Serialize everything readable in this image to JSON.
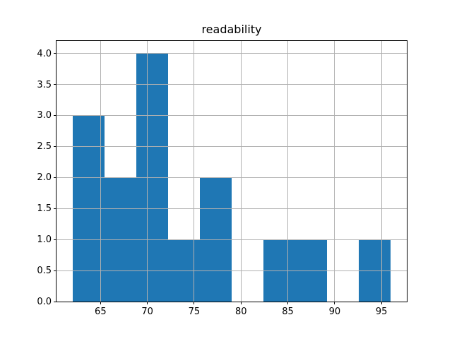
{
  "chart_data": {
    "type": "bar",
    "subtype": "histogram",
    "title": "readability",
    "xlabel": "",
    "ylabel": "",
    "bar_color": "#1f77b4",
    "grid": true,
    "grid_color": "#b0b0b0",
    "grid_above_bars": true,
    "background_color": "#ffffff",
    "frame_color": "#000000",
    "bin_edges": [
      62.0,
      65.4,
      68.8,
      72.2,
      75.6,
      79.0,
      82.4,
      85.8,
      89.2,
      92.6,
      96.0
    ],
    "counts": [
      3,
      2,
      4,
      1,
      2,
      0,
      1,
      1,
      0,
      1
    ],
    "xlim": [
      60.3,
      97.7
    ],
    "ylim": [
      0,
      4.2
    ],
    "x_axis": {
      "ticks": [
        {
          "value": 65,
          "label": "65"
        },
        {
          "value": 70,
          "label": "70"
        },
        {
          "value": 75,
          "label": "75"
        },
        {
          "value": 80,
          "label": "80"
        },
        {
          "value": 85,
          "label": "85"
        },
        {
          "value": 90,
          "label": "90"
        },
        {
          "value": 95,
          "label": "95"
        }
      ]
    },
    "y_axis": {
      "ticks": [
        {
          "value": 0.0,
          "label": "0.0"
        },
        {
          "value": 0.5,
          "label": "0.5"
        },
        {
          "value": 1.0,
          "label": "1.0"
        },
        {
          "value": 1.5,
          "label": "1.5"
        },
        {
          "value": 2.0,
          "label": "2.0"
        },
        {
          "value": 2.5,
          "label": "2.5"
        },
        {
          "value": 3.0,
          "label": "3.0"
        },
        {
          "value": 3.5,
          "label": "3.5"
        },
        {
          "value": 4.0,
          "label": "4.0"
        }
      ]
    }
  }
}
